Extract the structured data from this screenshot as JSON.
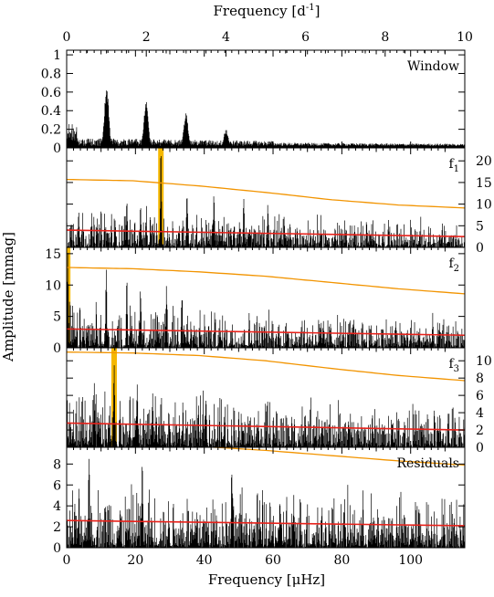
{
  "colors": {
    "spectrum": "#000000",
    "noise": "#e8221b",
    "significance": "#f29400",
    "highlight": "#f5b800"
  },
  "chart_data": {
    "type": "line",
    "top_axis": {
      "label_pre": "Frequency [d",
      "label_sup": "-1",
      "label_post": "]",
      "range": [
        0,
        10
      ],
      "ticks": [
        "0",
        "2",
        "4",
        "6",
        "8",
        "10"
      ]
    },
    "bottom_axis": {
      "label_pre": "Frequency [",
      "label_mu": "μ",
      "label_post": "Hz]",
      "range": [
        0,
        115.74
      ],
      "ticks": [
        "0",
        "20",
        "40",
        "60",
        "80",
        "100"
      ]
    },
    "ylabel": "Amplitude [mmag]",
    "panels": [
      {
        "key": "window",
        "label": "Window",
        "label_sub": "",
        "y_side": "left",
        "ylim": [
          0,
          1.05
        ],
        "yticks": [
          "0",
          "0.2",
          "0.4",
          "0.6",
          "0.8",
          "1"
        ],
        "noise_level": null,
        "significance_curve": null,
        "peaks": [
          {
            "x": 11.6,
            "y": 0.68
          },
          {
            "x": 23.1,
            "y": 0.5
          },
          {
            "x": 34.7,
            "y": 0.38
          },
          {
            "x": 46.3,
            "y": 0.2
          }
        ],
        "highlight_x": null
      },
      {
        "key": "f1",
        "label": "f",
        "label_sub": "1",
        "y_side": "right",
        "ylim": [
          0,
          23
        ],
        "yticks": [
          "0",
          "5",
          "10",
          "15",
          "20"
        ],
        "noise_level": [
          4.0,
          2.5
        ],
        "significance_curve": [
          15.7,
          15.4,
          14.2,
          12.7,
          11.0,
          9.8,
          9.1
        ],
        "peaks": [
          {
            "x": 27.4,
            "y": 22.5
          },
          {
            "x": 35.0,
            "y": 14.5
          },
          {
            "x": 42.8,
            "y": 13.3
          },
          {
            "x": 17.5,
            "y": 10.8
          },
          {
            "x": 51.5,
            "y": 12.0
          },
          {
            "x": 58.5,
            "y": 11.0
          },
          {
            "x": 21.5,
            "y": 10.5
          },
          {
            "x": 3.5,
            "y": 9.5
          }
        ],
        "highlight_x": 27.4
      },
      {
        "key": "f2",
        "label": "f",
        "label_sub": "2",
        "y_side": "left",
        "ylim": [
          0,
          16
        ],
        "yticks": [
          "0",
          "5",
          "10",
          "15"
        ],
        "noise_level": [
          3.0,
          2.0
        ],
        "significance_curve": [
          12.8,
          12.6,
          12.1,
          11.4,
          10.4,
          9.4,
          8.6
        ],
        "peaks": [
          {
            "x": 0.3,
            "y": 15.5
          },
          {
            "x": 11.5,
            "y": 12.8
          },
          {
            "x": 17.5,
            "y": 11.3
          },
          {
            "x": 21.5,
            "y": 10.8
          },
          {
            "x": 29.0,
            "y": 10.3
          },
          {
            "x": 33.5,
            "y": 10.0
          }
        ],
        "highlight_x": 0.3
      },
      {
        "key": "f3",
        "label": "f",
        "label_sub": "3",
        "y_side": "right",
        "ylim": [
          0,
          11.5
        ],
        "yticks": [
          "0",
          "2",
          "4",
          "6",
          "8",
          "10"
        ],
        "noise_level": [
          2.8,
          2.0
        ],
        "significance_curve": [
          11.0,
          10.9,
          10.6,
          10.0,
          9.1,
          8.3,
          7.7
        ],
        "peaks": [
          {
            "x": 13.8,
            "y": 11.0
          },
          {
            "x": 8.0,
            "y": 7.8
          },
          {
            "x": 20.5,
            "y": 8.5
          },
          {
            "x": 25.0,
            "y": 7.5
          },
          {
            "x": 40.5,
            "y": 7.2
          }
        ],
        "highlight_x": 13.8
      },
      {
        "key": "residuals",
        "label": "Residuals",
        "label_sub": "",
        "y_side": "left",
        "ylim": [
          0,
          9.6
        ],
        "yticks": [
          "0",
          "2",
          "4",
          "6",
          "8"
        ],
        "noise_level": [
          2.6,
          2.1
        ],
        "significance_curve": [
          10.1,
          10.0,
          9.7,
          9.3,
          8.8,
          8.3,
          7.9
        ],
        "peaks": [
          {
            "x": 6.5,
            "y": 9.2
          },
          {
            "x": 22.0,
            "y": 8.6
          },
          {
            "x": 48.0,
            "y": 8.0
          }
        ],
        "highlight_x": null
      }
    ]
  }
}
